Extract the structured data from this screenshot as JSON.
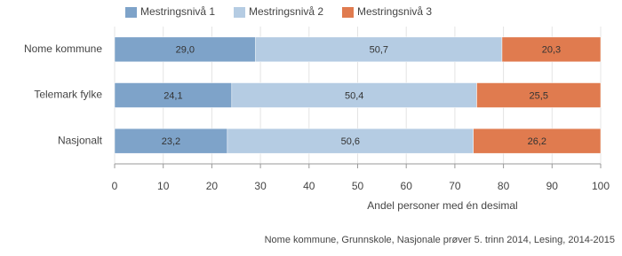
{
  "chart_data": {
    "type": "bar",
    "orientation": "horizontal",
    "stacked": true,
    "categories": [
      "Nome kommune",
      "Telemark fylke",
      "Nasjonalt"
    ],
    "series": [
      {
        "name": "Mestringsnivå 1",
        "color": "#7ea3c9",
        "values": [
          29.0,
          24.1,
          23.2
        ],
        "value_labels": [
          "29,0",
          "24,1",
          "23,2"
        ]
      },
      {
        "name": "Mestringsnivå 2",
        "color": "#b5cce3",
        "values": [
          50.7,
          50.4,
          50.6
        ],
        "value_labels": [
          "50,7",
          "50,4",
          "50,6"
        ]
      },
      {
        "name": "Mestringsnivå 3",
        "color": "#e07b4f",
        "values": [
          20.3,
          25.5,
          26.2
        ],
        "value_labels": [
          "20,3",
          "25,5",
          "26,2"
        ]
      }
    ],
    "xlim": [
      0,
      100
    ],
    "xticks": [
      0,
      10,
      20,
      30,
      40,
      50,
      60,
      70,
      80,
      90,
      100
    ],
    "xlabel": "Andel personer med én desimal",
    "grid": true,
    "source": "Nome kommune, Grunnskole, Nasjonale prøver 5. trinn 2014, Lesing, 2014-2015"
  }
}
